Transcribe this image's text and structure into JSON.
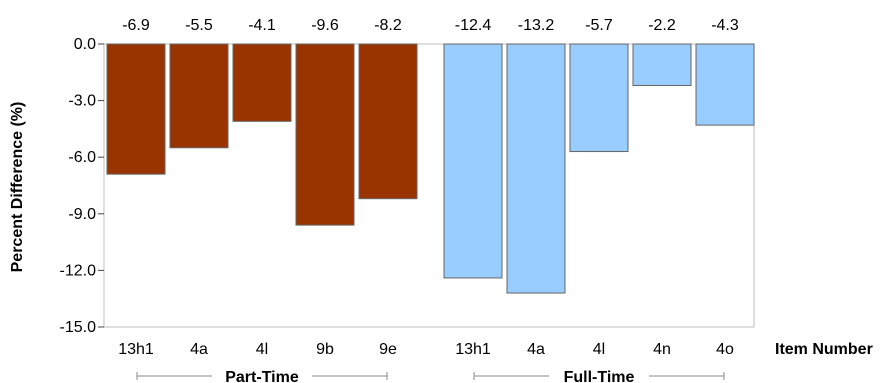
{
  "chart_data": {
    "type": "bar",
    "ylabel": "Percent Difference (%)",
    "xlabel": "Item Number",
    "ylim": [
      -15.0,
      0.0
    ],
    "yticks": [
      "0.0",
      "-3.0",
      "-6.0",
      "-9.0",
      "-12.0",
      "-15.0"
    ],
    "grid": false,
    "groups": [
      {
        "name": "Part-Time",
        "color": "#993300",
        "categories": [
          "13h1",
          "4a",
          "4l",
          "9b",
          "9e"
        ],
        "values": [
          -6.9,
          -5.5,
          -4.1,
          -9.6,
          -8.2
        ],
        "labels": [
          "-6.9",
          "-5.5",
          "-4.1",
          "-9.6",
          "-8.2"
        ]
      },
      {
        "name": "Full-Time",
        "color": "#99ccff",
        "categories": [
          "13h1",
          "4a",
          "4l",
          "4n",
          "4o"
        ],
        "values": [
          -12.4,
          -13.2,
          -5.7,
          -2.2,
          -4.3
        ],
        "labels": [
          "-12.4",
          "-13.2",
          "-5.7",
          "-2.2",
          "-4.3"
        ]
      }
    ]
  }
}
